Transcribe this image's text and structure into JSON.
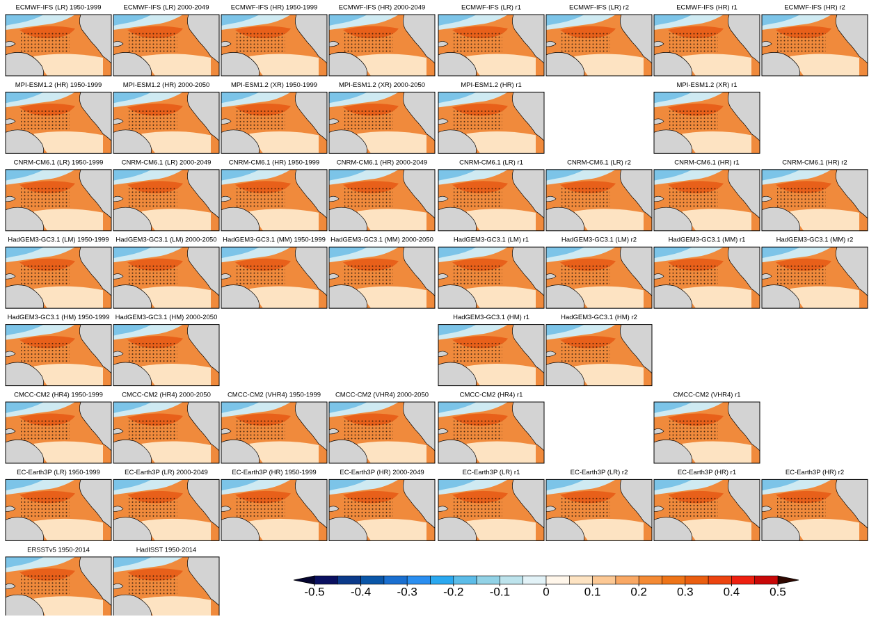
{
  "panels": [
    [
      "ECMWF-IFS (LR) 1950-1999",
      "ECMWF-IFS (LR) 2000-2049",
      "ECMWF-IFS (HR) 1950-1999",
      "ECMWF-IFS (HR) 2000-2049",
      "ECMWF-IFS (LR) r1",
      "ECMWF-IFS (LR) r2",
      "ECMWF-IFS (HR) r1",
      "ECMWF-IFS (HR) r2"
    ],
    [
      "MPI-ESM1.2 (HR) 1950-1999",
      "MPI-ESM1.2 (HR) 2000-2050",
      "MPI-ESM1.2 (XR) 1950-1999",
      "MPI-ESM1.2 (XR) 2000-2050",
      "MPI-ESM1.2 (HR) r1",
      null,
      "MPI-ESM1.2 (XR) r1",
      null
    ],
    [
      "CNRM-CM6.1 (LR) 1950-1999",
      "CNRM-CM6.1 (LR) 2000-2049",
      "CNRM-CM6.1 (HR) 1950-1999",
      "CNRM-CM6.1 (HR) 2000-2049",
      "CNRM-CM6.1 (LR) r1",
      "CNRM-CM6.1 (LR) r2",
      "CNRM-CM6.1 (HR) r1",
      "CNRM-CM6.1 (HR) r2"
    ],
    [
      "HadGEM3-GC3.1 (LM) 1950-1999",
      "HadGEM3-GC3.1 (LM) 2000-2050",
      "HadGEM3-GC3.1 (MM) 1950-1999",
      "HadGEM3-GC3.1 (MM) 2000-2050",
      "HadGEM3-GC3.1 (LM) r1",
      "HadGEM3-GC3.1 (LM) r2",
      "HadGEM3-GC3.1 (MM) r1",
      "HadGEM3-GC3.1 (MM) r2"
    ],
    [
      "HadGEM3-GC3.1 (HM) 1950-1999",
      "HadGEM3-GC3.1 (HM) 2000-2050",
      null,
      null,
      "HadGEM3-GC3.1 (HM) r1",
      "HadGEM3-GC3.1 (HM) r2",
      null,
      null
    ],
    [
      "CMCC-CM2 (HR4) 1950-1999",
      "CMCC-CM2 (HR4) 2000-2050",
      "CMCC-CM2 (VHR4) 1950-1999",
      "CMCC-CM2 (VHR4) 2000-2050",
      "CMCC-CM2 (HR4) r1",
      null,
      "CMCC-CM2 (VHR4) r1",
      null
    ],
    [
      "EC-Earth3P (LR) 1950-1999",
      "EC-Earth3P (LR) 2000-2049",
      "EC-Earth3P (HR) 1950-1999",
      "EC-Earth3P (HR) 2000-2049",
      "EC-Earth3P (LR) r1",
      "EC-Earth3P (LR) r2",
      "EC-Earth3P (HR) r1",
      "EC-Earth3P (HR) r2"
    ],
    [
      "ERSSTv5 1950-2014",
      "HadISST 1950-2014"
    ]
  ],
  "colorbar": {
    "ticks": [
      -0.5,
      -0.4,
      -0.3,
      -0.2,
      -0.1,
      0,
      0.1,
      0.2,
      0.3,
      0.4,
      0.5
    ],
    "colors": [
      "#0a1060",
      "#0b3a8a",
      "#0a56a8",
      "#1a6fd0",
      "#2a8ef0",
      "#2aa8f0",
      "#5cbce8",
      "#92d2e6",
      "#bde3ec",
      "#e2f2f7",
      "#fff6ea",
      "#fde3c2",
      "#fcc894",
      "#f9a864",
      "#f48a34",
      "#ee7418",
      "#ea5e10",
      "#ec4410",
      "#ee2010",
      "#c80808"
    ],
    "under_color": "#050530",
    "over_color": "#300800"
  }
}
